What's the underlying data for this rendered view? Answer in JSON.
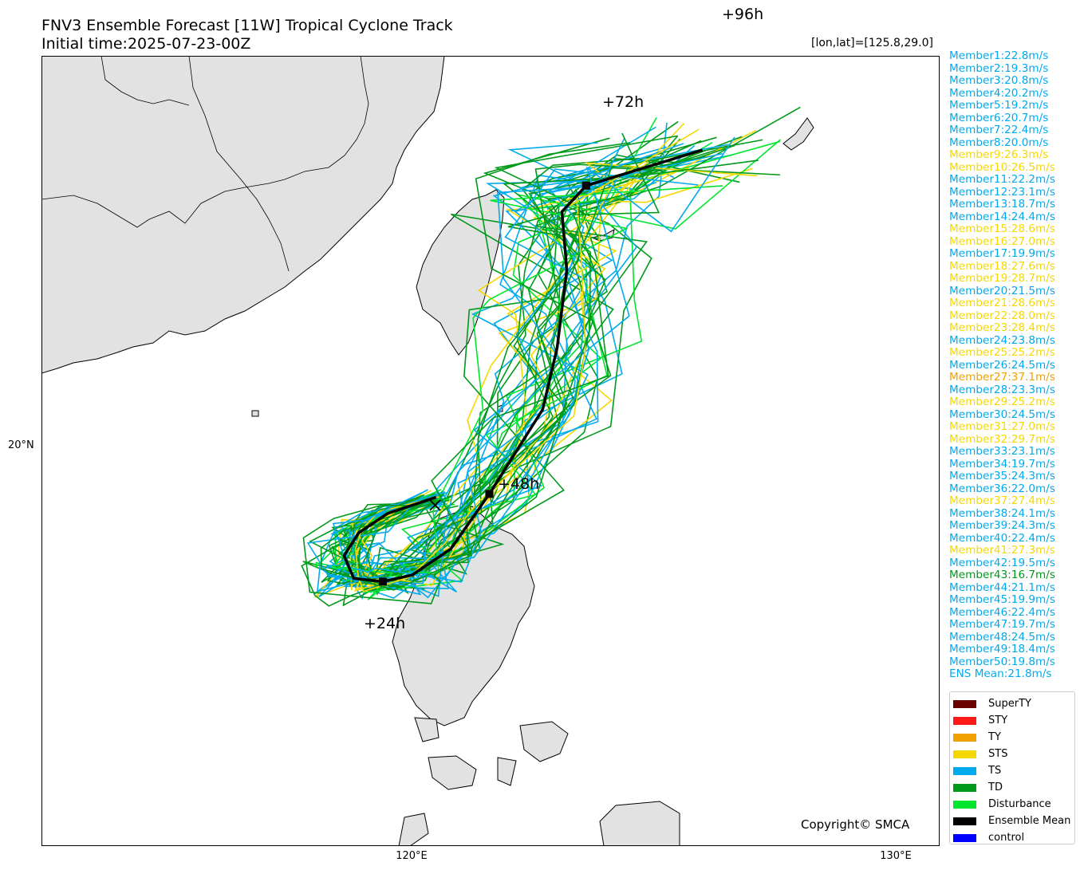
{
  "title": "FNV3 Ensemble Forecast [11W] Tropical Cyclone Track",
  "subtitle": "Initial time:2025-07-23-00Z",
  "cursor_readout": "[lon,lat]=[125.8,29.0]",
  "copyright": "Copyright© SMCA",
  "axes": {
    "lat_label": "20°N",
    "lon_labels": [
      "120°E",
      "130°E"
    ]
  },
  "colors": {
    "SuperTY": "#6b0000",
    "STY": "#ff1a1a",
    "TY": "#f0a000",
    "STS": "#f5d800",
    "TS": "#00aaee",
    "TD": "#009a1a",
    "Disturbance": "#00e62e",
    "EnsembleMean": "#000000",
    "control": "#0000ff",
    "land": "#e2e2e2"
  },
  "members": [
    {
      "text": "Member1:22.8m/s",
      "cat": "TS"
    },
    {
      "text": "Member2:19.3m/s",
      "cat": "TS"
    },
    {
      "text": "Member3:20.8m/s",
      "cat": "TS"
    },
    {
      "text": "Member4:20.2m/s",
      "cat": "TS"
    },
    {
      "text": "Member5:19.2m/s",
      "cat": "TS"
    },
    {
      "text": "Member6:20.7m/s",
      "cat": "TS"
    },
    {
      "text": "Member7:22.4m/s",
      "cat": "TS"
    },
    {
      "text": "Member8:20.0m/s",
      "cat": "TS"
    },
    {
      "text": "Member9:26.3m/s",
      "cat": "STS"
    },
    {
      "text": "Member10:26.5m/s",
      "cat": "STS"
    },
    {
      "text": "Member11:22.2m/s",
      "cat": "TS"
    },
    {
      "text": "Member12:23.1m/s",
      "cat": "TS"
    },
    {
      "text": "Member13:18.7m/s",
      "cat": "TS"
    },
    {
      "text": "Member14:24.4m/s",
      "cat": "TS"
    },
    {
      "text": "Member15:28.6m/s",
      "cat": "STS"
    },
    {
      "text": "Member16:27.0m/s",
      "cat": "STS"
    },
    {
      "text": "Member17:19.9m/s",
      "cat": "TS"
    },
    {
      "text": "Member18:27.6m/s",
      "cat": "STS"
    },
    {
      "text": "Member19:28.7m/s",
      "cat": "STS"
    },
    {
      "text": "Member20:21.5m/s",
      "cat": "TS"
    },
    {
      "text": "Member21:28.6m/s",
      "cat": "STS"
    },
    {
      "text": "Member22:28.0m/s",
      "cat": "STS"
    },
    {
      "text": "Member23:28.4m/s",
      "cat": "STS"
    },
    {
      "text": "Member24:23.8m/s",
      "cat": "TS"
    },
    {
      "text": "Member25:25.2m/s",
      "cat": "STS"
    },
    {
      "text": "Member26:24.5m/s",
      "cat": "TS"
    },
    {
      "text": "Member27:37.1m/s",
      "cat": "TY"
    },
    {
      "text": "Member28:23.3m/s",
      "cat": "TS"
    },
    {
      "text": "Member29:25.2m/s",
      "cat": "STS"
    },
    {
      "text": "Member30:24.5m/s",
      "cat": "TS"
    },
    {
      "text": "Member31:27.0m/s",
      "cat": "STS"
    },
    {
      "text": "Member32:29.7m/s",
      "cat": "STS"
    },
    {
      "text": "Member33:23.1m/s",
      "cat": "TS"
    },
    {
      "text": "Member34:19.7m/s",
      "cat": "TS"
    },
    {
      "text": "Member35:24.3m/s",
      "cat": "TS"
    },
    {
      "text": "Member36:22.0m/s",
      "cat": "TS"
    },
    {
      "text": "Member37:27.4m/s",
      "cat": "STS"
    },
    {
      "text": "Member38:24.1m/s",
      "cat": "TS"
    },
    {
      "text": "Member39:24.3m/s",
      "cat": "TS"
    },
    {
      "text": "Member40:22.4m/s",
      "cat": "TS"
    },
    {
      "text": "Member41:27.3m/s",
      "cat": "STS"
    },
    {
      "text": "Member42:19.5m/s",
      "cat": "TS"
    },
    {
      "text": "Member43:16.7m/s",
      "cat": "TD"
    },
    {
      "text": "Member44:21.1m/s",
      "cat": "TS"
    },
    {
      "text": "Member45:19.9m/s",
      "cat": "TS"
    },
    {
      "text": "Member46:22.4m/s",
      "cat": "TS"
    },
    {
      "text": "Member47:19.7m/s",
      "cat": "TS"
    },
    {
      "text": "Member48:24.5m/s",
      "cat": "TS"
    },
    {
      "text": "Member49:18.4m/s",
      "cat": "TS"
    },
    {
      "text": "Member50:19.8m/s",
      "cat": "TS"
    },
    {
      "text": "ENS Mean:21.8m/s",
      "cat": "TS"
    }
  ],
  "legend": [
    {
      "label": "SuperTY",
      "color": "#6b0000"
    },
    {
      "label": "STY",
      "color": "#ff1a1a"
    },
    {
      "label": "TY",
      "color": "#f0a000"
    },
    {
      "label": "STS",
      "color": "#f5d800"
    },
    {
      "label": "TS",
      "color": "#00aaee"
    },
    {
      "label": "TD",
      "color": "#009a1a"
    },
    {
      "label": "Disturbance",
      "color": "#00e62e"
    },
    {
      "label": "Ensemble Mean",
      "color": "#000000"
    },
    {
      "label": "control",
      "color": "#0000ff"
    }
  ],
  "ensemble_mean": {
    "forecast_labels": [
      "+24h",
      "+48h",
      "+72h",
      "+96h"
    ],
    "track": [
      {
        "lon": 120.5,
        "lat": 18.7
      },
      {
        "lon": 119.5,
        "lat": 18.2
      },
      {
        "lon": 118.9,
        "lat": 17.6
      },
      {
        "lon": 118.6,
        "lat": 16.9
      },
      {
        "lon": 118.8,
        "lat": 16.2
      },
      {
        "lon": 119.4,
        "lat": 16.1
      },
      {
        "lon": 120.0,
        "lat": 16.3
      },
      {
        "lon": 120.8,
        "lat": 17.1
      },
      {
        "lon": 121.6,
        "lat": 18.8
      },
      {
        "lon": 122.7,
        "lat": 21.4
      },
      {
        "lon": 123.0,
        "lat": 23.3
      },
      {
        "lon": 123.2,
        "lat": 25.7
      },
      {
        "lon": 123.1,
        "lat": 27.5
      },
      {
        "lon": 123.6,
        "lat": 28.3
      },
      {
        "lon": 126.0,
        "lat": 29.4
      }
    ]
  }
}
